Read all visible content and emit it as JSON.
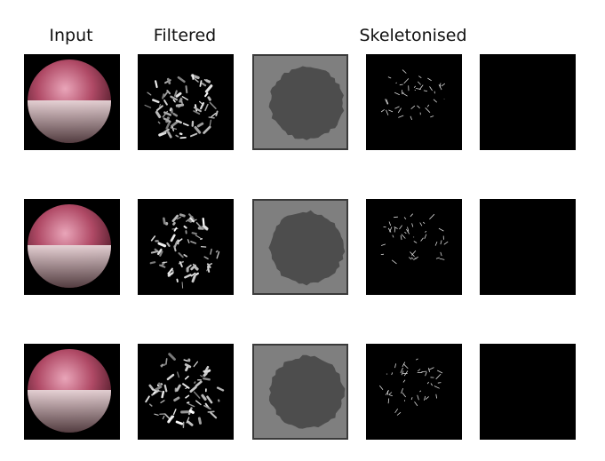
{
  "figure": {
    "column_titles": {
      "input": "Input",
      "filtered": "Filtered",
      "skeletonised": "Skeletonised"
    },
    "rows": [
      {
        "panels": [
          "input-image",
          "filtered-image",
          "mask-image",
          "skeleton-image",
          "empty-image"
        ]
      },
      {
        "panels": [
          "input-image",
          "filtered-image",
          "mask-image",
          "skeleton-image",
          "empty-image"
        ]
      },
      {
        "panels": [
          "input-image",
          "filtered-image",
          "mask-image",
          "skeleton-image",
          "empty-image"
        ]
      }
    ],
    "colors": {
      "panel_background": "#000000",
      "mask_background": "#7f7f7f",
      "mask_blob": "#4d4d4d",
      "sphere_highlight": "#e9a5b9",
      "sphere_mid": "#b04a66",
      "sphere_band": "#e7d6d8",
      "sphere_shadow": "#5a2030"
    }
  }
}
